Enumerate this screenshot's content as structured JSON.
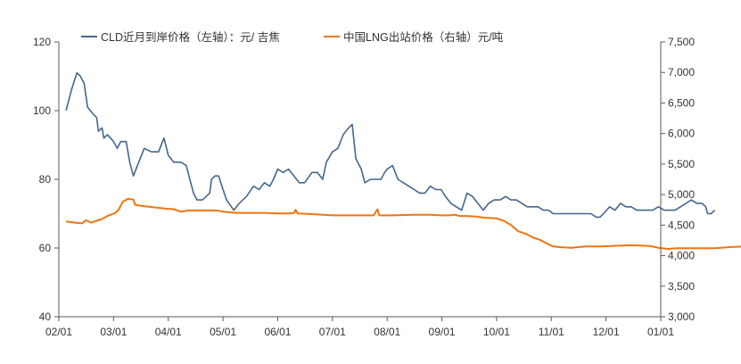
{
  "chart_data": {
    "type": "line",
    "title": "",
    "x": {
      "tick_labels": [
        "02/01",
        "03/01",
        "04/01",
        "05/01",
        "06/01",
        "07/01",
        "08/01",
        "09/01",
        "10/01",
        "11/01",
        "12/01",
        "01/01"
      ]
    },
    "y_left": {
      "range": [
        40,
        120
      ],
      "ticks": [
        40,
        60,
        80,
        100,
        120
      ],
      "tick_labels": [
        "40",
        "60",
        "80",
        "100",
        "120"
      ]
    },
    "y_right": {
      "range": [
        3000,
        7500
      ],
      "ticks": [
        3000,
        3500,
        4000,
        4500,
        5000,
        5500,
        6000,
        6500,
        7000,
        7500
      ],
      "tick_labels": [
        "3,000",
        "3,500",
        "4,000",
        "4,500",
        "5,000",
        "5,500",
        "6,000",
        "6,500",
        "7,000",
        "7,500"
      ]
    },
    "grid": false,
    "legend_position": "top",
    "series": [
      {
        "name": "CLD近月到岸价格（左轴）：元/ 吉焦",
        "axis": "left",
        "color": "#44678e",
        "points": [
          [
            "02/05",
            100
          ],
          [
            "02/08",
            106
          ],
          [
            "02/11",
            111
          ],
          [
            "02/13",
            110
          ],
          [
            "02/15",
            108
          ],
          [
            "02/17",
            101
          ],
          [
            "02/20",
            99
          ],
          [
            "02/22",
            98
          ],
          [
            "02/23",
            94
          ],
          [
            "02/25",
            95
          ],
          [
            "02/26",
            92
          ],
          [
            "02/28",
            93
          ],
          [
            "03/01",
            91
          ],
          [
            "03/03",
            89
          ],
          [
            "03/05",
            91
          ],
          [
            "03/08",
            91
          ],
          [
            "03/10",
            85
          ],
          [
            "03/12",
            81
          ],
          [
            "03/15",
            85
          ],
          [
            "03/18",
            89
          ],
          [
            "03/22",
            88
          ],
          [
            "03/26",
            88
          ],
          [
            "03/29",
            92
          ],
          [
            "04/01",
            87
          ],
          [
            "04/04",
            85
          ],
          [
            "04/08",
            85
          ],
          [
            "04/11",
            84
          ],
          [
            "04/13",
            80
          ],
          [
            "04/15",
            76
          ],
          [
            "04/17",
            74
          ],
          [
            "04/20",
            74
          ],
          [
            "04/24",
            76
          ],
          [
            "04/25",
            80
          ],
          [
            "04/27",
            81
          ],
          [
            "04/29",
            81
          ],
          [
            "05/01",
            77
          ],
          [
            "05/03",
            74
          ],
          [
            "05/07",
            71
          ],
          [
            "05/10",
            73
          ],
          [
            "05/14",
            75
          ],
          [
            "05/18",
            78
          ],
          [
            "05/21",
            77
          ],
          [
            "05/24",
            79
          ],
          [
            "05/27",
            78
          ],
          [
            "05/29",
            80
          ],
          [
            "06/01",
            83
          ],
          [
            "06/04",
            82
          ],
          [
            "06/07",
            83
          ],
          [
            "06/10",
            81
          ],
          [
            "06/13",
            79
          ],
          [
            "06/16",
            79
          ],
          [
            "06/20",
            82
          ],
          [
            "06/23",
            82
          ],
          [
            "06/26",
            80
          ],
          [
            "06/28",
            85
          ],
          [
            "07/01",
            88
          ],
          [
            "07/04",
            89
          ],
          [
            "07/07",
            93
          ],
          [
            "07/10",
            95
          ],
          [
            "07/12",
            96
          ],
          [
            "07/14",
            86
          ],
          [
            "07/17",
            83
          ],
          [
            "07/19",
            79
          ],
          [
            "07/22",
            80
          ],
          [
            "07/25",
            80
          ],
          [
            "07/28",
            80
          ],
          [
            "07/30",
            82
          ],
          [
            "08/01",
            83
          ],
          [
            "08/04",
            84
          ],
          [
            "08/07",
            80
          ],
          [
            "08/10",
            79
          ],
          [
            "08/13",
            78
          ],
          [
            "08/16",
            77
          ],
          [
            "08/19",
            76
          ],
          [
            "08/22",
            76
          ],
          [
            "08/25",
            78
          ],
          [
            "08/28",
            77
          ],
          [
            "08/31",
            77
          ],
          [
            "09/03",
            75
          ],
          [
            "09/06",
            73
          ],
          [
            "09/09",
            72
          ],
          [
            "09/12",
            71
          ],
          [
            "09/15",
            76
          ],
          [
            "09/18",
            75
          ],
          [
            "09/21",
            73
          ],
          [
            "09/24",
            71
          ],
          [
            "09/27",
            73
          ],
          [
            "09/30",
            74
          ],
          [
            "10/03",
            74
          ],
          [
            "10/06",
            75
          ],
          [
            "10/09",
            74
          ],
          [
            "10/12",
            74
          ],
          [
            "10/15",
            73
          ],
          [
            "10/18",
            72
          ],
          [
            "10/21",
            72
          ],
          [
            "10/24",
            72
          ],
          [
            "10/27",
            71
          ],
          [
            "10/30",
            71
          ],
          [
            "11/02",
            70
          ],
          [
            "11/05",
            70
          ],
          [
            "11/08",
            70
          ],
          [
            "11/11",
            70
          ],
          [
            "11/14",
            70
          ],
          [
            "11/17",
            70
          ],
          [
            "11/20",
            70
          ],
          [
            "11/23",
            70
          ],
          [
            "11/26",
            69
          ],
          [
            "11/28",
            69
          ],
          [
            "11/30",
            70
          ],
          [
            "12/03",
            72
          ],
          [
            "12/06",
            71
          ],
          [
            "12/09",
            73
          ],
          [
            "12/12",
            72
          ],
          [
            "12/15",
            72
          ],
          [
            "12/18",
            71
          ],
          [
            "12/21",
            71
          ],
          [
            "12/24",
            71
          ],
          [
            "12/27",
            71
          ],
          [
            "12/30",
            72
          ],
          [
            "01/03",
            71
          ],
          [
            "01/06",
            71
          ],
          [
            "01/09",
            71
          ],
          [
            "01/12",
            72
          ],
          [
            "01/15",
            73
          ],
          [
            "01/18",
            74
          ],
          [
            "01/21",
            73
          ],
          [
            "01/24",
            73
          ],
          [
            "01/26",
            72
          ],
          [
            "01/27",
            70
          ],
          [
            "01/29",
            70
          ],
          [
            "01/31",
            71
          ]
        ]
      },
      {
        "name": "中国LNG出站价格（右轴）元/吨",
        "axis": "right",
        "color": "#f0750f",
        "points": [
          [
            "02/05",
            4560
          ],
          [
            "02/10",
            4540
          ],
          [
            "02/14",
            4530
          ],
          [
            "02/16",
            4580
          ],
          [
            "02/19",
            4540
          ],
          [
            "02/22",
            4570
          ],
          [
            "02/25",
            4600
          ],
          [
            "02/28",
            4650
          ],
          [
            "03/02",
            4700
          ],
          [
            "03/04",
            4760
          ],
          [
            "03/06",
            4880
          ],
          [
            "03/09",
            4930
          ],
          [
            "03/12",
            4920
          ],
          [
            "03/13",
            4830
          ],
          [
            "03/18",
            4810
          ],
          [
            "03/24",
            4790
          ],
          [
            "03/30",
            4770
          ],
          [
            "04/04",
            4760
          ],
          [
            "04/08",
            4720
          ],
          [
            "04/12",
            4740
          ],
          [
            "04/20",
            4740
          ],
          [
            "04/28",
            4740
          ],
          [
            "05/01",
            4720
          ],
          [
            "05/08",
            4700
          ],
          [
            "05/16",
            4700
          ],
          [
            "05/24",
            4700
          ],
          [
            "06/01",
            4690
          ],
          [
            "06/07",
            4690
          ],
          [
            "06/10",
            4700
          ],
          [
            "06/11",
            4750
          ],
          [
            "06/12",
            4690
          ],
          [
            "06/20",
            4680
          ],
          [
            "07/01",
            4660
          ],
          [
            "07/10",
            4660
          ],
          [
            "07/20",
            4660
          ],
          [
            "07/24",
            4660
          ],
          [
            "07/26",
            4760
          ],
          [
            "07/27",
            4660
          ],
          [
            "08/05",
            4660
          ],
          [
            "08/15",
            4670
          ],
          [
            "08/25",
            4670
          ],
          [
            "09/01",
            4660
          ],
          [
            "09/05",
            4660
          ],
          [
            "09/08",
            4670
          ],
          [
            "09/11",
            4650
          ],
          [
            "09/15",
            4650
          ],
          [
            "09/20",
            4640
          ],
          [
            "09/25",
            4620
          ],
          [
            "10/01",
            4610
          ],
          [
            "10/05",
            4570
          ],
          [
            "10/09",
            4500
          ],
          [
            "10/13",
            4400
          ],
          [
            "10/17",
            4360
          ],
          [
            "10/21",
            4300
          ],
          [
            "10/25",
            4260
          ],
          [
            "10/29",
            4200
          ],
          [
            "11/02",
            4150
          ],
          [
            "11/06",
            4140
          ],
          [
            "11/12",
            4130
          ],
          [
            "11/20",
            4150
          ],
          [
            "11/28",
            4150
          ],
          [
            "12/05",
            4160
          ],
          [
            "12/15",
            4170
          ],
          [
            "12/25",
            4160
          ],
          [
            "12/30",
            4130
          ],
          [
            "01/05",
            4110
          ],
          [
            "01/10",
            4120
          ],
          [
            "01/20",
            4120
          ],
          [
            "01/31",
            4120
          ],
          [
            "02/09",
            4140
          ],
          [
            "02/16",
            4150
          ],
          [
            "02/20",
            4150
          ],
          [
            "02/25",
            4180
          ],
          [
            "02/28",
            4200
          ],
          [
            "03/02",
            4280
          ],
          [
            "03/06",
            4360
          ],
          [
            "03/10",
            4420
          ],
          [
            "03/15",
            4450
          ],
          [
            "03/20",
            4460
          ],
          [
            "03/25",
            4470
          ],
          [
            "03/30",
            4490
          ],
          [
            "04/05",
            4480
          ],
          [
            "04/12",
            4470
          ],
          [
            "04/20",
            4460
          ],
          [
            "04/26",
            4440
          ],
          [
            "04/30",
            4430
          ],
          [
            "05/05",
            4430
          ]
        ]
      }
    ]
  }
}
